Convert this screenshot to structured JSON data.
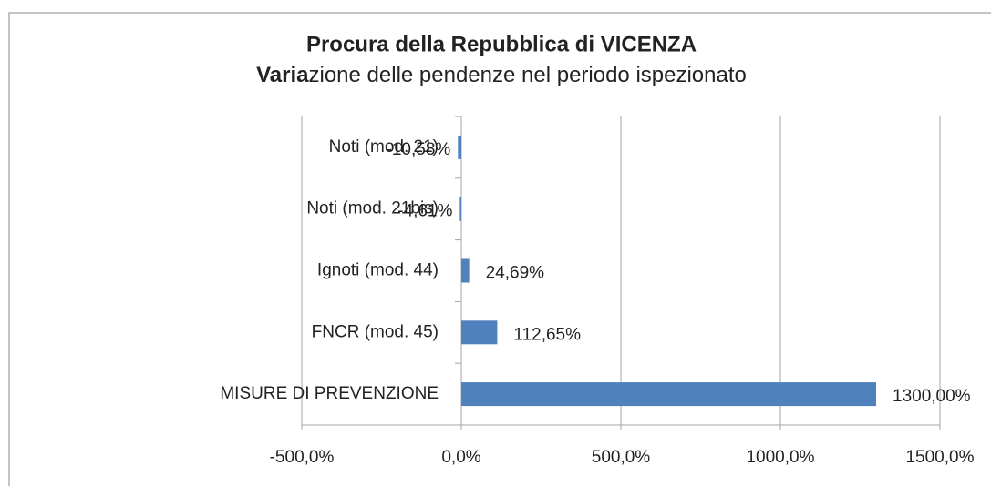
{
  "chart_data": {
    "type": "hbar",
    "title": "Procura della Repubblica di VICENZA",
    "subtitle": {
      "bold": "Varia",
      "rest": "zione delle pendenze nel periodo ispezionato"
    },
    "categories": [
      "Noti (mod. 21)",
      "Noti (mod. 21bis)",
      "Ignoti (mod. 44)",
      "FNCR (mod. 45)",
      "MISURE DI PREVENZIONE"
    ],
    "values": [
      -10.58,
      -4.61,
      24.69,
      112.65,
      1300
    ],
    "value_labels": [
      "-10,58%",
      "-4,61%",
      "24,69%",
      "112,65%",
      "1300,00%"
    ],
    "color": "#4f81bd",
    "xlim": [
      -500,
      1500
    ],
    "xticks": [
      {
        "value": -500,
        "label": "-500,0%"
      },
      {
        "value": 0,
        "label": "0,0%"
      },
      {
        "value": 500,
        "label": "500,0%"
      },
      {
        "value": 1000,
        "label": "1000,0%"
      },
      {
        "value": 1500,
        "label": "1500,0%"
      }
    ],
    "grid": true
  }
}
